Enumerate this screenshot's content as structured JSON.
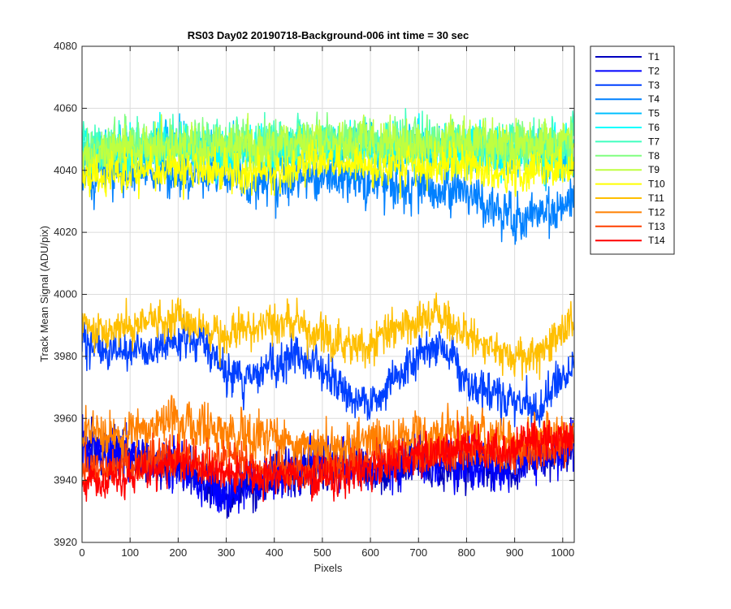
{
  "chart_data": {
    "type": "line",
    "title": "RS03 Day02 20190718-Background-006 int time = 30 sec",
    "xlabel": "Pixels",
    "ylabel": "Track Mean Signal (ADU/pix)",
    "xlim": [
      0,
      1024
    ],
    "ylim": [
      3920,
      4080
    ],
    "xticks": [
      0,
      100,
      200,
      300,
      400,
      500,
      600,
      700,
      800,
      900,
      1000
    ],
    "yticks": [
      3920,
      3940,
      3960,
      3980,
      4000,
      4020,
      4040,
      4060,
      4080
    ],
    "grid": true,
    "legend_position": "outside-top-right",
    "n_points": 1024,
    "series": [
      {
        "name": "T1",
        "color": "#0000bf",
        "noise": 6,
        "profile": [
          [
            0,
            3951
          ],
          [
            100,
            3948
          ],
          [
            200,
            3944
          ],
          [
            300,
            3935
          ],
          [
            400,
            3940
          ],
          [
            500,
            3945
          ],
          [
            600,
            3943
          ],
          [
            700,
            3946
          ],
          [
            800,
            3944
          ],
          [
            900,
            3944
          ],
          [
            1024,
            3951
          ]
        ]
      },
      {
        "name": "T2",
        "color": "#0000ff",
        "noise": 6,
        "profile": [
          [
            0,
            3951
          ],
          [
            100,
            3947
          ],
          [
            200,
            3945
          ],
          [
            300,
            3936
          ],
          [
            400,
            3941
          ],
          [
            500,
            3946
          ],
          [
            600,
            3944
          ],
          [
            700,
            3947
          ],
          [
            800,
            3945
          ],
          [
            900,
            3945
          ],
          [
            1024,
            3952
          ]
        ]
      },
      {
        "name": "T3",
        "color": "#0040ff",
        "noise": 5,
        "profile": [
          [
            0,
            3985
          ],
          [
            50,
            3981
          ],
          [
            100,
            3983
          ],
          [
            150,
            3983
          ],
          [
            200,
            3986
          ],
          [
            250,
            3985
          ],
          [
            300,
            3975
          ],
          [
            350,
            3973
          ],
          [
            400,
            3977
          ],
          [
            450,
            3980
          ],
          [
            500,
            3975
          ],
          [
            550,
            3967
          ],
          [
            600,
            3964
          ],
          [
            650,
            3972
          ],
          [
            700,
            3980
          ],
          [
            750,
            3984
          ],
          [
            800,
            3972
          ],
          [
            850,
            3968
          ],
          [
            900,
            3964
          ],
          [
            950,
            3963
          ],
          [
            1000,
            3974
          ],
          [
            1024,
            3976
          ]
        ]
      },
      {
        "name": "T4",
        "color": "#0080ff",
        "noise": 6,
        "profile": [
          [
            0,
            4040
          ],
          [
            100,
            4040
          ],
          [
            200,
            4038
          ],
          [
            300,
            4037
          ],
          [
            400,
            4036
          ],
          [
            500,
            4038
          ],
          [
            600,
            4036
          ],
          [
            700,
            4034
          ],
          [
            800,
            4034
          ],
          [
            900,
            4023
          ],
          [
            1000,
            4028
          ],
          [
            1024,
            4030
          ]
        ]
      },
      {
        "name": "T5",
        "color": "#00bfff",
        "noise": 6,
        "profile": [
          [
            0,
            4045
          ],
          [
            100,
            4046
          ],
          [
            200,
            4046
          ],
          [
            300,
            4046
          ],
          [
            400,
            4045
          ],
          [
            500,
            4047
          ],
          [
            600,
            4047
          ],
          [
            700,
            4046
          ],
          [
            800,
            4046
          ],
          [
            900,
            4045
          ],
          [
            1024,
            4045
          ]
        ]
      },
      {
        "name": "T6",
        "color": "#00ffff",
        "noise": 6,
        "profile": [
          [
            0,
            4046
          ],
          [
            100,
            4047
          ],
          [
            200,
            4047
          ],
          [
            300,
            4047
          ],
          [
            400,
            4046
          ],
          [
            500,
            4048
          ],
          [
            600,
            4048
          ],
          [
            700,
            4047
          ],
          [
            800,
            4047
          ],
          [
            900,
            4046
          ],
          [
            1024,
            4046
          ]
        ]
      },
      {
        "name": "T7",
        "color": "#40ffbf",
        "noise": 6,
        "profile": [
          [
            0,
            4047
          ],
          [
            100,
            4048
          ],
          [
            200,
            4048
          ],
          [
            300,
            4048
          ],
          [
            400,
            4047
          ],
          [
            500,
            4049
          ],
          [
            600,
            4049
          ],
          [
            700,
            4048
          ],
          [
            800,
            4048
          ],
          [
            900,
            4047
          ],
          [
            1024,
            4047
          ]
        ]
      },
      {
        "name": "T8",
        "color": "#80ff80",
        "noise": 6,
        "profile": [
          [
            0,
            4046
          ],
          [
            100,
            4048
          ],
          [
            200,
            4048
          ],
          [
            300,
            4049
          ],
          [
            400,
            4048
          ],
          [
            500,
            4050
          ],
          [
            600,
            4050
          ],
          [
            700,
            4049
          ],
          [
            800,
            4049
          ],
          [
            900,
            4048
          ],
          [
            1024,
            4048
          ]
        ]
      },
      {
        "name": "T9",
        "color": "#bfff40",
        "noise": 6,
        "profile": [
          [
            0,
            4045
          ],
          [
            100,
            4047
          ],
          [
            200,
            4047
          ],
          [
            300,
            4048
          ],
          [
            400,
            4047
          ],
          [
            500,
            4049
          ],
          [
            600,
            4049
          ],
          [
            700,
            4048
          ],
          [
            800,
            4049
          ],
          [
            900,
            4048
          ],
          [
            1024,
            4049
          ]
        ]
      },
      {
        "name": "T10",
        "color": "#ffff00",
        "noise": 5,
        "profile": [
          [
            0,
            4036
          ],
          [
            100,
            4040
          ],
          [
            200,
            4040
          ],
          [
            300,
            4039
          ],
          [
            400,
            4039
          ],
          [
            500,
            4043
          ],
          [
            600,
            4041
          ],
          [
            700,
            4041
          ],
          [
            800,
            4042
          ],
          [
            900,
            4038
          ],
          [
            1024,
            4042
          ]
        ]
      },
      {
        "name": "T11",
        "color": "#ffbf00",
        "noise": 5,
        "profile": [
          [
            0,
            3989
          ],
          [
            50,
            3988
          ],
          [
            100,
            3991
          ],
          [
            150,
            3992
          ],
          [
            200,
            3993
          ],
          [
            250,
            3989
          ],
          [
            300,
            3986
          ],
          [
            350,
            3990
          ],
          [
            400,
            3991
          ],
          [
            450,
            3991
          ],
          [
            500,
            3987
          ],
          [
            550,
            3984
          ],
          [
            600,
            3984
          ],
          [
            650,
            3989
          ],
          [
            700,
            3991
          ],
          [
            750,
            3993
          ],
          [
            800,
            3986
          ],
          [
            850,
            3983
          ],
          [
            900,
            3979
          ],
          [
            950,
            3981
          ],
          [
            1000,
            3988
          ],
          [
            1024,
            3991
          ]
        ]
      },
      {
        "name": "T12",
        "color": "#ff8000",
        "noise": 6,
        "profile": [
          [
            0,
            3956
          ],
          [
            100,
            3956
          ],
          [
            200,
            3958
          ],
          [
            300,
            3955
          ],
          [
            400,
            3954
          ],
          [
            500,
            3950
          ],
          [
            600,
            3952
          ],
          [
            700,
            3954
          ],
          [
            800,
            3957
          ],
          [
            900,
            3953
          ],
          [
            1024,
            3956
          ]
        ]
      },
      {
        "name": "T13",
        "color": "#ff4000",
        "noise": 5,
        "profile": [
          [
            0,
            3942
          ],
          [
            100,
            3945
          ],
          [
            200,
            3948
          ],
          [
            300,
            3946
          ],
          [
            400,
            3944
          ],
          [
            500,
            3943
          ],
          [
            600,
            3946
          ],
          [
            700,
            3948
          ],
          [
            800,
            3950
          ],
          [
            900,
            3949
          ],
          [
            1024,
            3952
          ]
        ]
      },
      {
        "name": "T14",
        "color": "#ff0000",
        "noise": 5,
        "profile": [
          [
            0,
            3938
          ],
          [
            100,
            3942
          ],
          [
            200,
            3946
          ],
          [
            300,
            3943
          ],
          [
            400,
            3941
          ],
          [
            500,
            3941
          ],
          [
            600,
            3944
          ],
          [
            700,
            3948
          ],
          [
            800,
            3951
          ],
          [
            900,
            3950
          ],
          [
            1024,
            3954
          ]
        ]
      }
    ]
  }
}
